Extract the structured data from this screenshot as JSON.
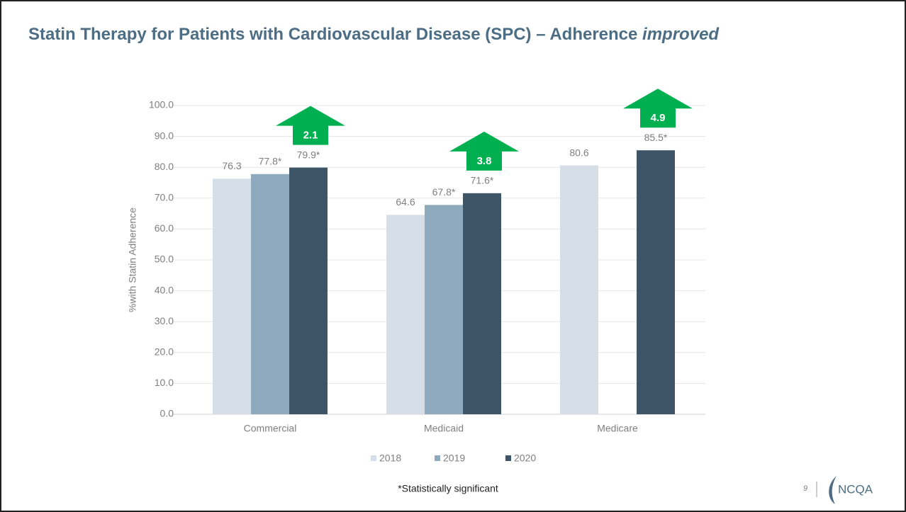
{
  "chart_data": {
    "type": "bar",
    "title": "Statin Therapy for Patients with Cardiovascular Disease (SPC) – Adherence",
    "title_italic": "improved",
    "y_label": "%with Statin Adherence",
    "categories": [
      "Commercial",
      "Medicaid",
      "Medicare"
    ],
    "series": [
      {
        "name": "2018",
        "color": "#d6dfe8",
        "values": [
          76.3,
          64.6,
          80.6
        ],
        "value_labels": [
          "76.3",
          "64.6",
          "80.6"
        ]
      },
      {
        "name": "2019",
        "color": "#8eaabc",
        "values": [
          77.8,
          67.8,
          null
        ],
        "value_labels": [
          "77.8*",
          "67.8*",
          null
        ]
      },
      {
        "name": "2020",
        "color": "#3d5566",
        "values": [
          79.9,
          71.6,
          85.5
        ],
        "value_labels": [
          "79.9*",
          "71.6*",
          "85.5*"
        ]
      }
    ],
    "improvements": [
      2.1,
      3.8,
      4.9
    ],
    "improvement_color": "#00b050",
    "ylim": [
      0,
      100
    ],
    "yticks": [
      {
        "value": 0,
        "label": "0.0"
      },
      {
        "value": 10,
        "label": "10.0"
      },
      {
        "value": 20,
        "label": "20.0"
      },
      {
        "value": 30,
        "label": "30.0"
      },
      {
        "value": 40,
        "label": "40.0"
      },
      {
        "value": 50,
        "label": "50.0"
      },
      {
        "value": 60,
        "label": "60.0"
      },
      {
        "value": 70,
        "label": "70.0"
      },
      {
        "value": 80,
        "label": "80.0"
      },
      {
        "value": 90,
        "label": "90.0"
      },
      {
        "value": 100,
        "label": "100.0"
      }
    ],
    "grid": true,
    "legend": "bottom",
    "footnote": "*Statistically significant",
    "page_number": "9",
    "logo": "NCQA"
  }
}
